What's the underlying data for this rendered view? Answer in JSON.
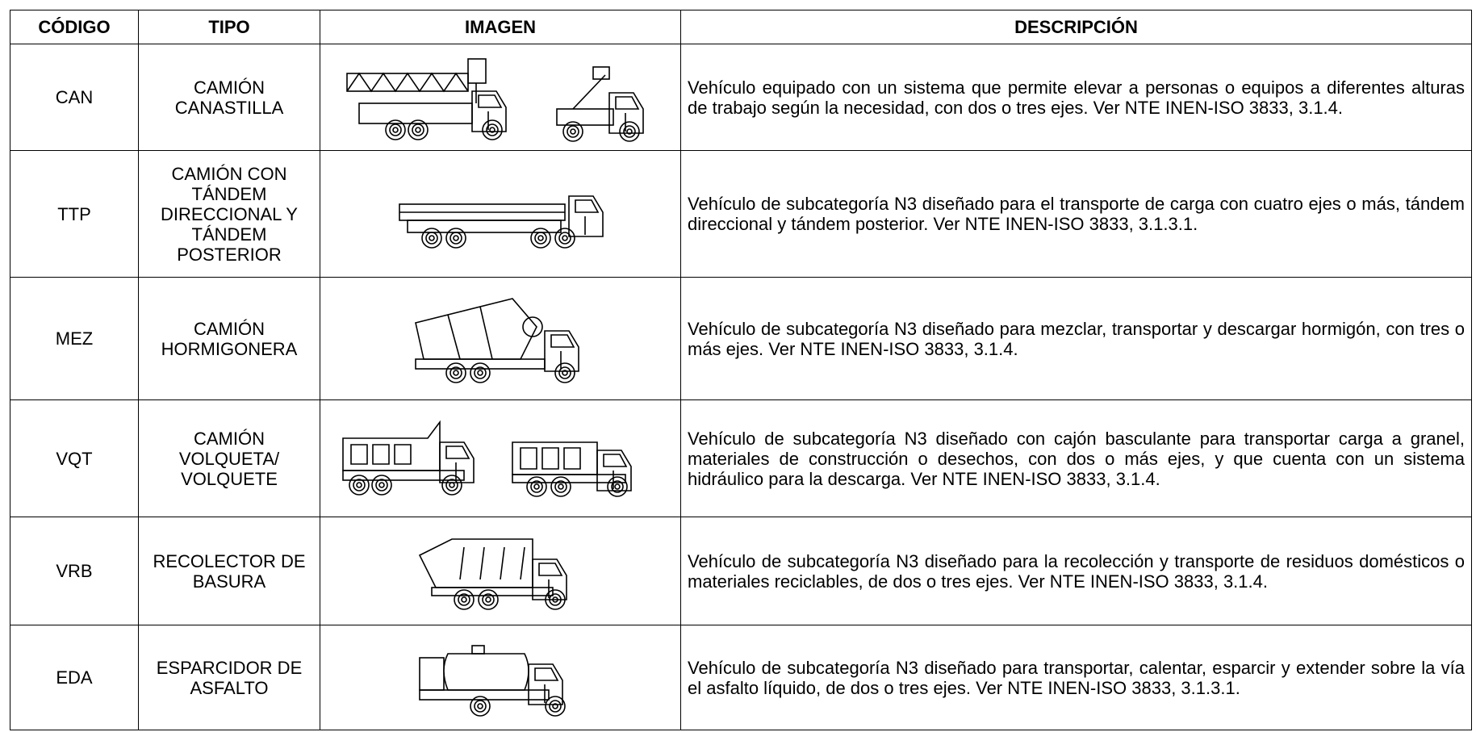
{
  "table": {
    "header": [
      "CÓDIGO",
      "TIPO",
      "IMAGEN",
      "DESCRIPCIÓN"
    ],
    "rows": [
      [
        "CAN",
        "CAMIÓN CANASTILLA",
        "Vehículo equipado con un sistema que permite elevar a personas o equipos a diferentes alturas de trabajo según la necesidad, con dos o tres ejes. Ver NTE INEN-ISO 3833, 3.1.4."
      ],
      [
        "TTP",
        "CAMIÓN CON TÁNDEM DIRECCIONAL Y TÁNDEM POSTERIOR",
        "Vehículo de subcategoría N3 diseñado para el transporte de carga con cuatro ejes o más, tándem direccional y tándem posterior. Ver NTE INEN-ISO 3833, 3.1.3.1."
      ],
      [
        "MEZ",
        "CAMIÓN HORMIGONERA",
        "Vehículo de subcategoría N3 diseñado para mezclar, transportar y descargar hormigón, con tres o más ejes. Ver NTE INEN-ISO 3833, 3.1.4."
      ],
      [
        "VQT",
        "CAMIÓN VOLQUETA/ VOLQUETE",
        "Vehículo de subcategoría N3 diseñado con cajón basculante para transportar carga a granel, materiales de construcción o desechos, con dos o más ejes, y que cuenta con un sistema hidráulico para la descarga. Ver NTE INEN-ISO 3833, 3.1.4."
      ],
      [
        "VRB",
        "RECOLECTOR DE BASURA",
        "Vehículo de subcategoría N3 diseñado para la recolección y transporte de residuos domésticos o materiales reciclables, de dos o tres ejes. Ver NTE INEN-ISO 3833, 3.1.4."
      ],
      [
        "EDA",
        "ESPARCIDOR DE ASFALTO",
        "Vehículo de subcategoría N3 diseñado para transportar, calentar, esparcir y extender sobre la vía el asfalto líquido, de dos o tres ejes. Ver NTE INEN-ISO 3833, 3.1.3.1."
      ]
    ]
  }
}
